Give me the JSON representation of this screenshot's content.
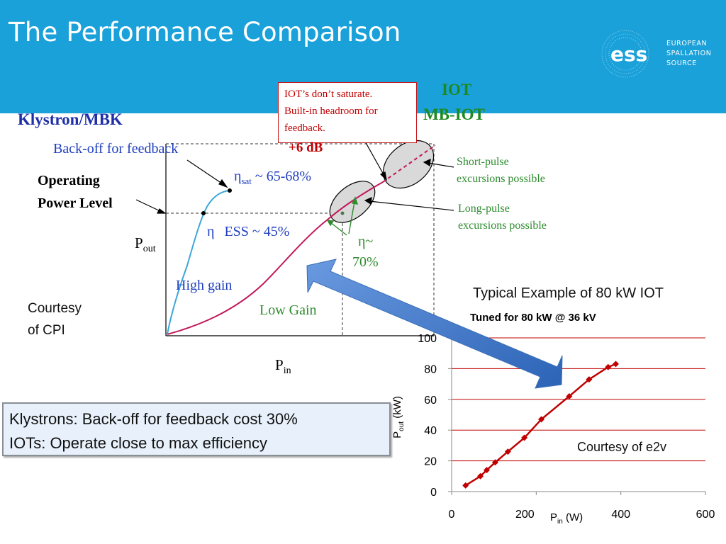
{
  "slide": {
    "title": "The Performance Comparison"
  },
  "logo": {
    "mark": "ess",
    "line1": "EUROPEAN",
    "line2": "SPALLATION",
    "line3": "SOURCE"
  },
  "colors": {
    "header": "#1ba1d9",
    "klystron_curve": "#3aa7d9",
    "iot_curve": "#c2185b",
    "annotation_green": "#2e8b2e",
    "annotation_red": "#c00000",
    "e2v_series": "#c00000"
  },
  "diagram": {
    "klystron_label": "Klystron/MBK",
    "backoff_label": "Back-off for feedback",
    "operating_label_1": "Operating",
    "operating_label_2": "Power Level",
    "pout_label": "P",
    "pout_sub": "out",
    "pin_label": "P",
    "pin_sub": "in",
    "eta_sat_sym": "η",
    "eta_sat_sub": "sat",
    "eta_sat_value": " ~ 65-68%",
    "eta_ess_sym": "η",
    "eta_ess_text": "ESS ~ 45%",
    "high_gain": "High gain",
    "low_gain": "Low Gain",
    "iot_label_1": "IOT",
    "iot_label_2": "MB-IOT",
    "iot_note_1": "IOT’s don’t saturate.",
    "iot_note_2": "Built-in headroom for",
    "iot_note_3": "feedback.",
    "plus6db": "+6 dB",
    "short_pulse_1": "Short-pulse",
    "short_pulse_2": "excursions possible",
    "long_pulse_1": "Long-pulse",
    "long_pulse_2": "excursions possible",
    "eta_iot_1": "η~",
    "eta_iot_2": "70%",
    "courtesy_cpi_1": "Courtesy",
    "courtesy_cpi_2": "of CPI"
  },
  "summary": {
    "line1": "Klystrons: Back-off for feedback cost 30%",
    "line2": "IOTs: Operate close to max efficiency"
  },
  "chart_data": {
    "type": "line",
    "title": "Typical Example of 80 kW IOT",
    "subtitle": "Tuned for 80 kW @ 36 kV",
    "xlabel": "P",
    "xlabel_sub": "in",
    "xlabel_unit": " (W)",
    "ylabel": "P",
    "ylabel_sub": "out",
    "ylabel_unit": " (kW)",
    "xlim": [
      0,
      600
    ],
    "ylim": [
      0,
      100
    ],
    "xticks": [
      0,
      200,
      400,
      600
    ],
    "yticks": [
      0,
      20,
      40,
      60,
      80,
      100
    ],
    "grid": "horizontal",
    "annotation": "Courtesy of e2v",
    "series": [
      {
        "x": [
          33,
          68,
          83,
          103,
          133,
          172,
          212,
          278,
          325,
          370,
          388
        ],
        "y": [
          4,
          10,
          14,
          19,
          26,
          35,
          47,
          62,
          73,
          81,
          83
        ]
      }
    ]
  }
}
